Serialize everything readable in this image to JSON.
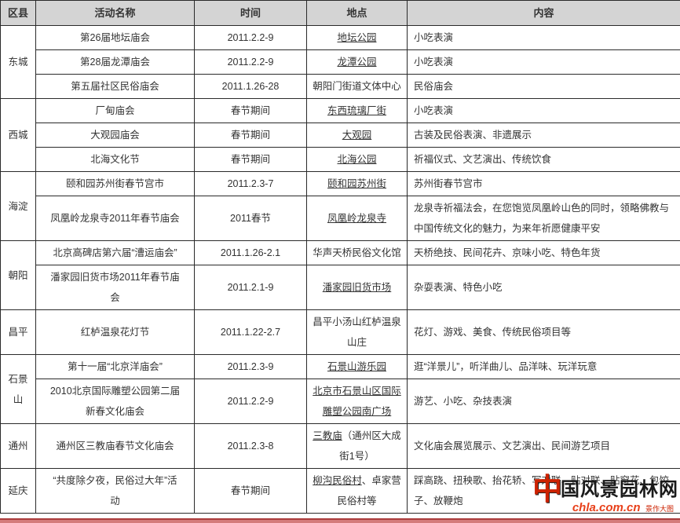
{
  "header": {
    "columns": [
      "区县",
      "活动名称",
      "时间",
      "地点",
      "内容"
    ]
  },
  "sections": [
    {
      "district": "东城",
      "rows": [
        {
          "name": "第26届地坛庙会",
          "time": "2011.2.2-9",
          "loc_link": "地坛公园",
          "loc_plain": "",
          "content": "小吃表演"
        },
        {
          "name": "第28届龙潭庙会",
          "time": "2011.2.2-9",
          "loc_link": "龙潭公园",
          "loc_plain": "",
          "content": "小吃表演"
        },
        {
          "name": "第五届社区民俗庙会",
          "time": "2011.1.26-28",
          "loc_link": "",
          "loc_plain": "朝阳门街道文体中心",
          "content": "民俗庙会"
        }
      ]
    },
    {
      "district": "西城",
      "rows": [
        {
          "name": "厂甸庙会",
          "time": "春节期间",
          "loc_link": "东西琉璃厂街",
          "loc_plain": "",
          "content": "小吃表演"
        },
        {
          "name": "大观园庙会",
          "time": "春节期间",
          "loc_link": "大观园",
          "loc_plain": "",
          "content": "古装及民俗表演、非遗展示"
        },
        {
          "name": "北海文化节",
          "time": "春节期间",
          "loc_link": "北海公园",
          "loc_plain": "",
          "content": "祈福仪式、文艺演出、传统饮食"
        }
      ]
    },
    {
      "district": "海淀",
      "rows": [
        {
          "name": "颐和园苏州街春节宫市",
          "time": "2011.2.3-7",
          "loc_link": "颐和园苏州街",
          "loc_plain": "",
          "content": "苏州街春节宫市"
        },
        {
          "name": "凤凰岭龙泉寺2011年春节庙会",
          "time": "2011春节",
          "loc_link": "凤凰岭龙泉寺",
          "loc_plain": "",
          "content": "龙泉寺祈福法会，在您饱览凤凰岭山色的同时，领略佛教与中国传统文化的魅力，为来年祈愿健康平安"
        }
      ]
    },
    {
      "district": "朝阳",
      "rows": [
        {
          "name": "北京高碑店第六届“漕运庙会”",
          "time": "2011.1.26-2.1",
          "loc_link": "",
          "loc_plain": "华声天桥民俗文化馆",
          "content": "天桥绝技、民间花卉、京味小吃、特色年货"
        },
        {
          "name": "潘家园旧货市场2011年春节庙\n会",
          "time": "2011.2.1-9",
          "loc_link": "潘家园旧货市场",
          "loc_plain": "",
          "content": "杂耍表演、特色小吃"
        }
      ]
    },
    {
      "district": "昌平",
      "rows": [
        {
          "name": "红栌温泉花灯节",
          "time": "2011.1.22-2.7",
          "loc_link": "",
          "loc_plain": "昌平小汤山红栌温泉\n山庄",
          "content": "花灯、游戏、美食、传统民俗项目等"
        }
      ]
    },
    {
      "district": "石景\n山",
      "rows": [
        {
          "name": "第十一届“北京洋庙会”",
          "time": "2011.2.3-9",
          "loc_link": "石景山游乐园",
          "loc_plain": "",
          "content": "逛“洋景儿”，听洋曲儿、品洋味、玩洋玩意"
        },
        {
          "name": "2010北京国际雕塑公园第二届\n新春文化庙会",
          "time": "2011.2.2-9",
          "loc_link": "北京市石景山区国际\n雕塑公园南广场",
          "loc_plain": "",
          "content": "游艺、小吃、杂技表演"
        }
      ]
    },
    {
      "district": "通州",
      "rows": [
        {
          "name": "通州区三教庙春节文化庙会",
          "time": "2011.2.3-8",
          "loc_link": "三教庙",
          "loc_plain": "（通州区大成\n街1号）",
          "content": "文化庙会展览展示、文艺演出、民间游艺项目"
        }
      ]
    },
    {
      "district": "延庆",
      "rows": [
        {
          "name": "“共度除夕夜，民俗过大年”活\n动",
          "time": "春节期间",
          "loc_link": "柳沟民俗村",
          "loc_plain": "、卓家营\n民俗村等",
          "content": "踩高跷、扭秧歌、抬花轿、写对联、贴对联、贴窗花、包饺子、放鞭炮"
        }
      ]
    }
  ],
  "watermark": {
    "logo_char": "中",
    "logo_text": "国风景园林网",
    "site": "chla.com.cn",
    "small_text": "景作大图"
  },
  "colors": {
    "header_bg": "#d4d4d4",
    "border": "#2a2a2a",
    "text": "#333333",
    "watermark_red": "#cc2200",
    "footer_bar": "#d47c7c",
    "footer_bar_edge": "#aa3c3c"
  }
}
